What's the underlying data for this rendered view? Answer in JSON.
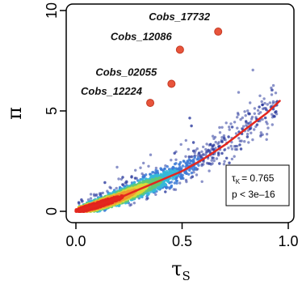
{
  "chart_data": {
    "type": "scatter",
    "xlabel": "τ",
    "xlabel_sub": "S",
    "ylabel": "π",
    "xlim": [
      0.0,
      1.0
    ],
    "ylim": [
      0,
      10
    ],
    "x_ticks": [
      "0.0",
      "0.5",
      "1.0"
    ],
    "y_ticks": [
      "0",
      "5",
      "10"
    ],
    "x_tick_values": [
      0.0,
      0.5,
      1.0
    ],
    "y_tick_values": [
      0,
      5,
      10
    ],
    "grid": false,
    "density_colors": [
      "#2b3a9c",
      "#3d7ad6",
      "#35b9d8",
      "#62c976",
      "#d9d83a",
      "#f29a2e",
      "#e3271f"
    ],
    "highlight_color": "#e8543b",
    "trend_color": "#e3271f",
    "highlighted_points": [
      {
        "label": "Cobs_17732",
        "x": 0.67,
        "y": 8.95
      },
      {
        "label": "Cobs_12086",
        "x": 0.49,
        "y": 8.05
      },
      {
        "label": "Cobs_02055",
        "x": 0.45,
        "y": 6.35
      },
      {
        "label": "Cobs_12224",
        "x": 0.35,
        "y": 5.4
      }
    ],
    "trend_line": {
      "x": [
        0.0,
        0.1,
        0.2,
        0.3,
        0.4,
        0.5,
        0.6,
        0.7,
        0.8,
        0.9,
        0.96
      ],
      "y": [
        0.0,
        0.3,
        0.65,
        1.1,
        1.55,
        2.0,
        2.6,
        3.3,
        4.1,
        4.9,
        5.5
      ]
    },
    "stats_box": {
      "tau_label": "τ",
      "tau_sub": "K",
      "tau_value": "= 0.765",
      "p_value": "p < 3e–16"
    }
  }
}
